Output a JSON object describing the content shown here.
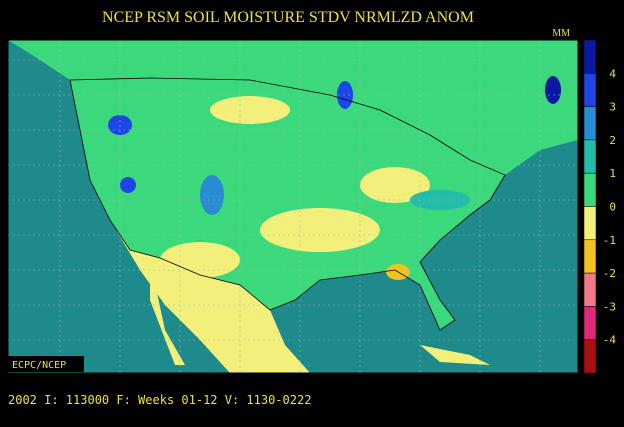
{
  "title": "NCEP RSM SOIL MOISTURE STDV NRMLZD ANOM",
  "unit": "MM",
  "badge": "ECPC/NCEP",
  "footer": "2002 I: 113000 F: Weeks 01-12 V: 1130-0222",
  "colorbar": {
    "labels": [
      4,
      3,
      2,
      1,
      0,
      -1,
      -2,
      -3,
      -4
    ],
    "colors": [
      "#0a1aa0",
      "#1e46e6",
      "#2a8cd2",
      "#22bca8",
      "#3cd87c",
      "#f2f07a",
      "#f2c21e",
      "#f07a8a",
      "#e0287a",
      "#a81010"
    ]
  }
}
